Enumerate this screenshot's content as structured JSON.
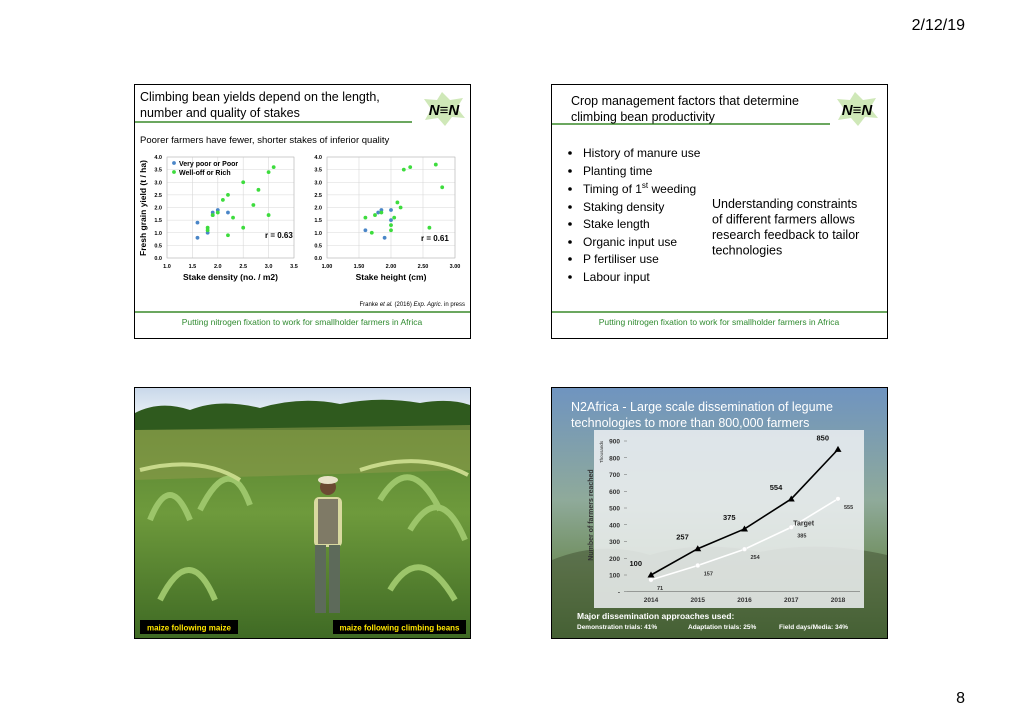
{
  "header": {
    "date": "2/12/19"
  },
  "page_number": "8",
  "slides": [
    {
      "title": [
        "Climbing bean yields depend on the length,",
        "number and quality of stakes"
      ],
      "logo": "N≡N",
      "subtitle": "Poorer farmers have fewer, shorter stakes of inferior quality",
      "y_label": "Fresh grain yield (t / ha)",
      "legend": [
        "Very poor or Poor",
        "Well-off or Rich"
      ],
      "colors": [
        "#4a86c8",
        "#3ddc3d"
      ],
      "plots": [
        {
          "x_label": "Stake density (no. / m2)",
          "annotation": "r = 0.63",
          "xlim": [
            1,
            3.5
          ],
          "xticks": [
            {
              "value": 1,
              "label": "1.0"
            },
            1.5,
            {
              "value": 2,
              "label": "2.0"
            },
            2.5,
            {
              "value": 3,
              "label": "3.0"
            },
            3.5
          ],
          "ylim": [
            0,
            4
          ],
          "yticks": [
            {
              "value": 0,
              "label": "0.0"
            },
            0.5,
            {
              "value": 1,
              "label": "1.0"
            },
            1.5,
            {
              "value": 2,
              "label": "2.0"
            },
            2.5,
            {
              "value": 3,
              "label": "3.0"
            },
            3.5,
            {
              "value": 4,
              "label": "4.0"
            }
          ],
          "groups": [
            [
              [
                1.6,
                1.4
              ],
              [
                1.6,
                0.8
              ],
              [
                1.8,
                1.0
              ],
              [
                1.9,
                1.8
              ],
              [
                2.0,
                1.9
              ],
              [
                2.2,
                1.8
              ],
              [
                1.9,
                1.7
              ]
            ],
            [
              [
                1.8,
                1.2
              ],
              [
                1.9,
                1.7
              ],
              [
                2.0,
                1.8
              ],
              [
                2.1,
                2.3
              ],
              [
                2.2,
                2.5
              ],
              [
                2.2,
                0.9
              ],
              [
                2.3,
                1.6
              ],
              [
                2.5,
                3.0
              ],
              [
                2.5,
                1.2
              ],
              [
                2.7,
                2.1
              ],
              [
                2.8,
                2.7
              ],
              [
                3.0,
                3.4
              ],
              [
                3.1,
                3.6
              ],
              [
                3.0,
                1.7
              ],
              [
                1.8,
                1.1
              ]
            ]
          ]
        },
        {
          "x_label": "Stake height (cm)",
          "annotation": "r = 0.61",
          "xlim": [
            1,
            3
          ],
          "xticks": [
            {
              "value": 1,
              "label": "1.00"
            },
            {
              "value": 1.5,
              "label": "1.50"
            },
            {
              "value": 2,
              "label": "2.00"
            },
            {
              "value": 2.5,
              "label": "2.50"
            },
            {
              "value": 3,
              "label": "3.00"
            }
          ],
          "ylim": [
            0,
            4
          ],
          "yticks": [
            {
              "value": 0,
              "label": "0.0"
            },
            0.5,
            {
              "value": 1,
              "label": "1.0"
            },
            1.5,
            {
              "value": 2,
              "label": "2.0"
            },
            2.5,
            {
              "value": 3,
              "label": "3.0"
            },
            3.5,
            {
              "value": 4,
              "label": "4.0"
            }
          ],
          "groups": [
            [
              [
                1.6,
                1.1
              ],
              [
                1.8,
                1.8
              ],
              [
                1.85,
                1.9
              ],
              [
                2.0,
                1.5
              ],
              [
                2.0,
                1.9
              ],
              [
                1.9,
                0.8
              ]
            ],
            [
              [
                1.6,
                1.6
              ],
              [
                1.7,
                1.0
              ],
              [
                1.75,
                1.7
              ],
              [
                1.85,
                1.8
              ],
              [
                2.0,
                1.3
              ],
              [
                2.0,
                1.1
              ],
              [
                2.05,
                1.6
              ],
              [
                2.1,
                2.2
              ],
              [
                2.15,
                2.0
              ],
              [
                2.2,
                3.5
              ],
              [
                2.3,
                3.6
              ],
              [
                2.6,
                1.2
              ],
              [
                2.7,
                3.7
              ],
              [
                2.8,
                2.8
              ]
            ]
          ]
        }
      ],
      "citation": [
        "Franke ",
        "et al.",
        " (2016) ",
        "Exp. Agric.",
        " in press"
      ],
      "footer": "Putting nitrogen fixation to work for smallholder farmers in Africa"
    },
    {
      "title": [
        "Crop management factors that determine",
        "climbing bean productivity"
      ],
      "logo": "N≡N",
      "bullets": [
        "History of manure use",
        "Planting time",
        [
          "Timing of 1",
          "st",
          " weeding"
        ],
        "Staking density",
        "Stake length",
        "Organic input use",
        "P fertiliser use",
        "Labour input"
      ],
      "note": [
        "Understanding constraints",
        "of different farmers allows",
        "research feedback to tailor",
        "technologies"
      ],
      "footer": "Putting nitrogen fixation to work for smallholder farmers in Africa"
    },
    {
      "captions": [
        "maize following maize",
        "maize following climbing beans"
      ]
    },
    {
      "title": [
        "N2Africa - Large scale dissemination of legume",
        "technologies to more than 800,000 farmers"
      ],
      "chart": {
        "y_label": "Number of farmers reached",
        "y_unit": "Thousands",
        "categories": [
          "2014",
          "2015",
          "2016",
          "2017",
          "2018"
        ],
        "ylim": [
          0,
          900
        ],
        "yticks": [
          {
            "value": 0,
            "label": "-"
          },
          100,
          200,
          300,
          400,
          500,
          600,
          700,
          800,
          900
        ],
        "actual": {
          "values": [
            100,
            257,
            375,
            554,
            850
          ]
        },
        "target": {
          "label": "Target",
          "values": [
            71,
            157,
            254,
            385,
            555
          ]
        }
      },
      "approaches_title": "Major dissemination approaches used:",
      "approaches": [
        "Demonstration trials: 41%",
        "Adaptation trials: 25%",
        "Field days/Media: 34%"
      ]
    }
  ]
}
